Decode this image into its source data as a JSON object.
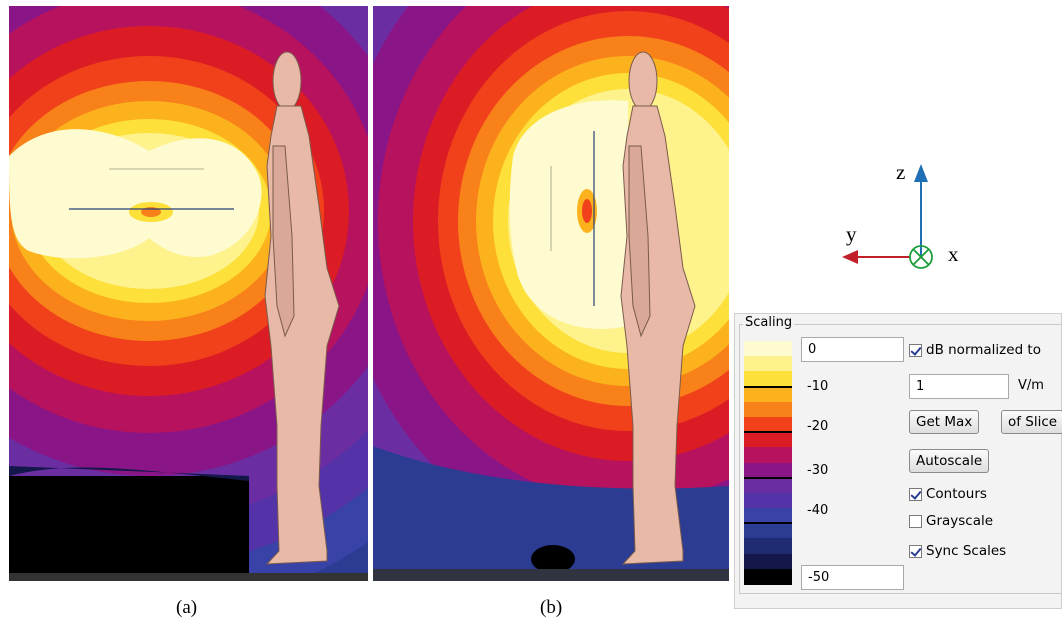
{
  "captions": {
    "a": "(a)",
    "b": "(b)"
  },
  "axes": {
    "z": "z",
    "y": "y",
    "x": "x",
    "z_color": "#1f6fb5",
    "y_color": "#c0202a",
    "x_color": "#1e9e3a"
  },
  "scaling": {
    "title": "Scaling",
    "max_value": "0",
    "min_value": "-50",
    "ticks": [
      "-10",
      "-20",
      "-30",
      "-40"
    ],
    "db_normalized_label": "dB normalized to",
    "db_normalized_checked": true,
    "norm_value": "1",
    "norm_unit": "V/m",
    "get_max_label": "Get Max",
    "of_slice_label": "of Slice",
    "autoscale_label": "Autoscale",
    "contours_label": "Contours",
    "contours_checked": true,
    "grayscale_label": "Grayscale",
    "grayscale_checked": false,
    "sync_scales_label": "Sync Scales",
    "sync_scales_checked": true,
    "colormap": [
      "#fefbd0",
      "#fdf28c",
      "#fde03a",
      "#fcb21d",
      "#f88119",
      "#f0411a",
      "#dc1c25",
      "#b6125e",
      "#8a1587",
      "#6a2ea2",
      "#5433a8",
      "#3942a6",
      "#2b3c92",
      "#1f2c72",
      "#13174a",
      "#000000"
    ]
  }
}
